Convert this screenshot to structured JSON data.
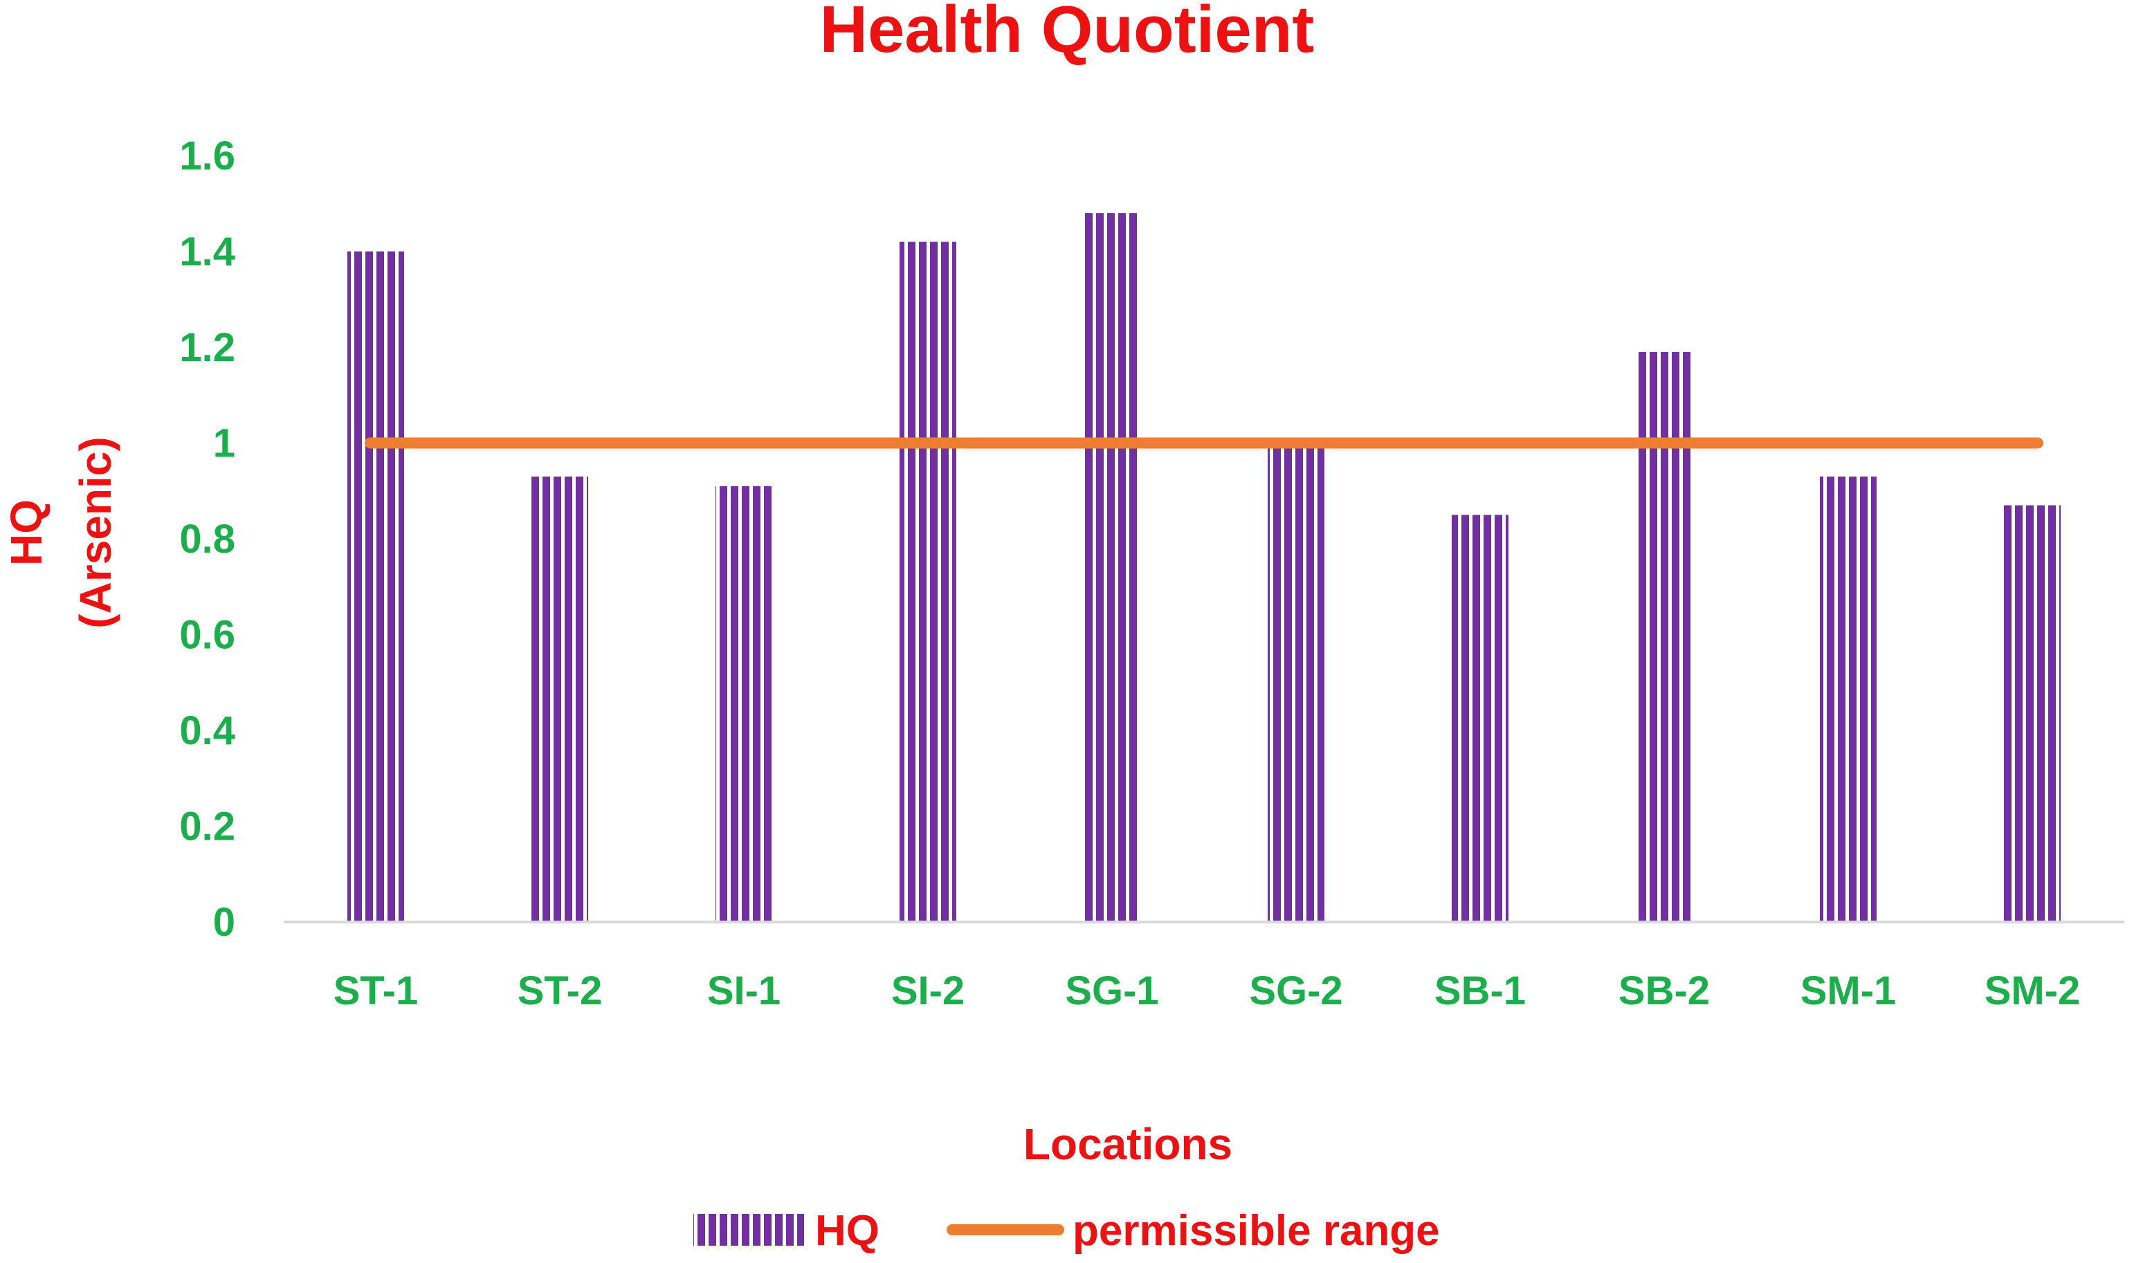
{
  "chart_data": {
    "type": "bar",
    "title": "Health Quotient",
    "xlabel": "Locations",
    "ylabel_line1": "HQ",
    "ylabel_line2": "(Arsenic)",
    "categories": [
      "ST-1",
      "ST-2",
      "SI-1",
      "SI-2",
      "SG-1",
      "SG-2",
      "SB-1",
      "SB-2",
      "SM-1",
      "SM-2"
    ],
    "series": [
      {
        "name": "HQ",
        "values": [
          1.4,
          0.93,
          0.91,
          1.42,
          1.48,
          1.0,
          0.85,
          1.19,
          0.93,
          0.87
        ],
        "color": "#7030A0",
        "pattern": "vertical-stripes"
      },
      {
        "name": "permissible range",
        "type": "line",
        "value": 1,
        "color": "#ED7D31"
      }
    ],
    "ylim": [
      0,
      1.6
    ],
    "yticks": [
      "0",
      "0.2",
      "0.4",
      "0.6",
      "0.8",
      "1",
      "1.2",
      "1.4",
      "1.6"
    ],
    "grid": false,
    "legend_position": "bottom",
    "colors": {
      "title": "#EE1111",
      "axis_title": "#EE1111",
      "tick_labels": "#1AAF4B",
      "legend_text": "#EE1111",
      "axis_line": "#D9D9D9"
    }
  }
}
